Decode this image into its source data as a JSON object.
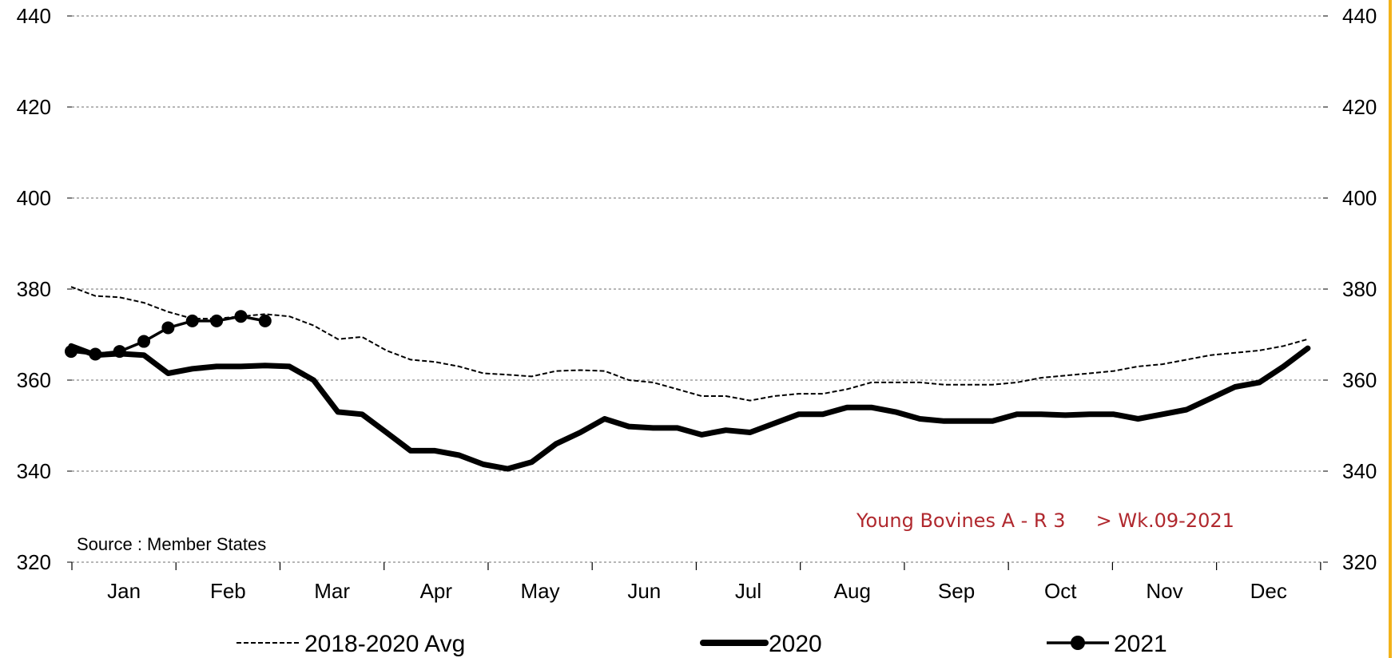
{
  "chart_data": {
    "type": "line",
    "ylim": [
      320,
      440
    ],
    "yticks": [
      320,
      340,
      360,
      380,
      400,
      420,
      440
    ],
    "grid": true,
    "legend_position": "bottom",
    "months": [
      "Jan",
      "Feb",
      "Mar",
      "Apr",
      "May",
      "Jun",
      "Jul",
      "Aug",
      "Sep",
      "Oct",
      "Nov",
      "Dec"
    ],
    "source_text": "Source : Member States",
    "annotation": "Young Bovines A - R 3     > Wk.09-2021",
    "series": [
      {
        "name": "2018-2020 Avg",
        "style": "dashed",
        "color": "#000000",
        "x": [
          1,
          2,
          3,
          4,
          5,
          6,
          7,
          8,
          9,
          10,
          11,
          12,
          13,
          14,
          15,
          16,
          17,
          18,
          19,
          20,
          21,
          22,
          23,
          24,
          25,
          26,
          27,
          28,
          29,
          30,
          31,
          32,
          33,
          34,
          35,
          36,
          37,
          38,
          39,
          40,
          41,
          42,
          43,
          44,
          45,
          46,
          47,
          48,
          49,
          50,
          51,
          52
        ],
        "values": [
          380.5,
          378.5,
          378.2,
          377,
          375,
          373.5,
          373.5,
          374,
          374.5,
          374,
          372,
          369,
          369.5,
          366.5,
          364.5,
          364,
          363,
          361.5,
          361.2,
          360.8,
          362,
          362.2,
          362,
          360,
          359.5,
          358,
          356.5,
          356.5,
          355.5,
          356.5,
          357,
          357,
          358,
          359.5,
          359.5,
          359.5,
          359,
          359,
          359,
          359.5,
          360.5,
          361,
          361.5,
          362,
          363,
          363.5,
          364.5,
          365.5,
          366,
          366.5,
          367.5,
          369
        ]
      },
      {
        "name": "2020",
        "style": "thick",
        "color": "#000000",
        "x": [
          1,
          2,
          3,
          4,
          5,
          6,
          7,
          8,
          9,
          10,
          11,
          12,
          13,
          14,
          15,
          16,
          17,
          18,
          19,
          20,
          21,
          22,
          23,
          24,
          25,
          26,
          27,
          28,
          29,
          30,
          31,
          32,
          33,
          34,
          35,
          36,
          37,
          38,
          39,
          40,
          41,
          42,
          43,
          44,
          45,
          46,
          47,
          48,
          49,
          50,
          51,
          52
        ],
        "values": [
          367.5,
          365.5,
          365.8,
          365.5,
          361.5,
          362.5,
          363,
          363,
          363.2,
          363,
          360,
          353,
          352.5,
          348.5,
          344.5,
          344.5,
          343.5,
          341.5,
          340.5,
          342,
          346,
          348.5,
          351.5,
          349.8,
          349.5,
          349.5,
          348,
          349,
          348.5,
          350.5,
          352.5,
          352.5,
          354,
          354,
          353,
          351.5,
          351,
          351,
          351,
          352.5,
          352.5,
          352.3,
          352.5,
          352.5,
          351.5,
          352.5,
          353.5,
          356,
          358.5,
          359.5,
          363,
          367
        ]
      },
      {
        "name": "2021",
        "style": "markers",
        "color": "#000000",
        "x": [
          1,
          2,
          3,
          4,
          5,
          6,
          7,
          8,
          9
        ],
        "values": [
          366.3,
          365.7,
          366.3,
          368.5,
          371.5,
          373,
          373,
          374,
          373
        ]
      }
    ]
  }
}
